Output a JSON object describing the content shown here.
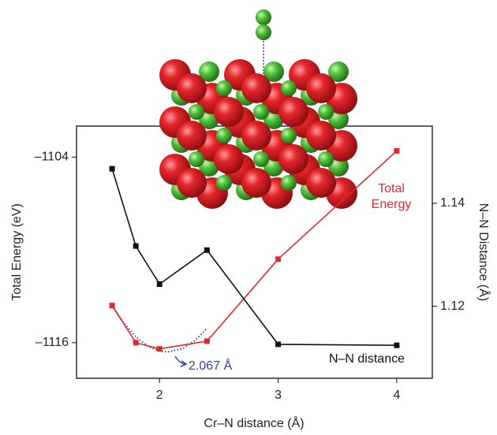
{
  "chart_data": {
    "type": "line",
    "x_label": "Cr–N distance (Å)",
    "y_label": "Total Energy (eV)",
    "y2_label": "N–N Distance (Å)",
    "x": [
      1.6,
      1.8,
      2,
      2.4,
      3,
      4
    ],
    "series": [
      {
        "name": "Total Energy",
        "color": "#e8252b",
        "axis": "y",
        "values": [
          -1113.6,
          -1116,
          -1116.4,
          -1115.9,
          -1110.6,
          -1103.6
        ]
      },
      {
        "name": "N–N distance",
        "color": "#111111",
        "axis": "y2",
        "values": [
          1.1467,
          1.1317,
          1.1243,
          1.1309,
          1.1126,
          1.1124
        ]
      }
    ],
    "fit": {
      "color": "#3344aa",
      "style": "dotted",
      "x": [
        1.6,
        1.7,
        1.8,
        1.9,
        2,
        2.067,
        2.2,
        2.3,
        2.4
      ],
      "values": [
        -1113.6,
        -1114.75,
        -1115.62,
        -1116.22,
        -1116.54,
        -1116.6,
        -1116.36,
        -1115.85,
        -1115.08
      ],
      "annotation": "2.067 Å"
    },
    "xlim": [
      1.3,
      4.3
    ],
    "xticks": [
      2,
      3,
      4
    ],
    "ylim": [
      -1118.3,
      -1102
    ],
    "yticks": [
      {
        "value": -1104,
        "label": "–1104"
      },
      {
        "value": -1116,
        "label": "–1116"
      }
    ],
    "y2lim": [
      1.106,
      1.155
    ],
    "y2ticks": [
      1.12,
      1.14
    ]
  }
}
